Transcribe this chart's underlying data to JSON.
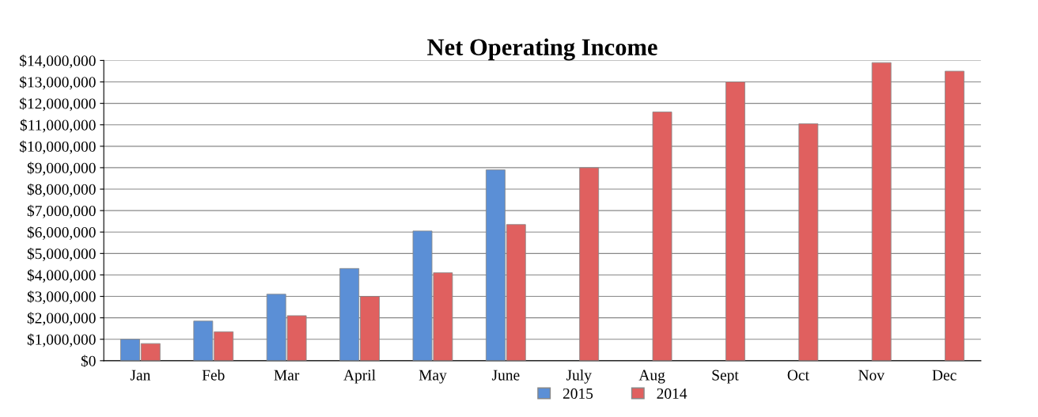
{
  "chart_data": {
    "type": "bar",
    "title": "Net Operating Income",
    "categories": [
      "Jan",
      "Feb",
      "Mar",
      "April",
      "May",
      "June",
      "July",
      "Aug",
      "Sept",
      "Oct",
      "Nov",
      "Dec"
    ],
    "series": [
      {
        "name": "2015",
        "color": "#5b8fd6",
        "values": [
          1000000,
          1850000,
          3100000,
          4300000,
          6050000,
          8900000,
          null,
          null,
          null,
          null,
          null,
          null
        ]
      },
      {
        "name": "2014",
        "color": "#e0605f",
        "values": [
          800000,
          1350000,
          2100000,
          3000000,
          4100000,
          6350000,
          9000000,
          11600000,
          13000000,
          11050000,
          13900000,
          13500000
        ]
      }
    ],
    "ylim": [
      0,
      14000000
    ],
    "yticks": [
      {
        "value": 0,
        "label": "$0"
      },
      {
        "value": 1000000,
        "label": "$1,000,000"
      },
      {
        "value": 2000000,
        "label": "$2,000,000"
      },
      {
        "value": 3000000,
        "label": "$3,000,000"
      },
      {
        "value": 4000000,
        "label": "$4,000,000"
      },
      {
        "value": 5000000,
        "label": "$5,000,000"
      },
      {
        "value": 6000000,
        "label": "$6,000,000"
      },
      {
        "value": 7000000,
        "label": "$7,000,000"
      },
      {
        "value": 8000000,
        "label": "$8,000,000"
      },
      {
        "value": 9000000,
        "label": "$9,000,000"
      },
      {
        "value": 10000000,
        "label": "$10,000,000"
      },
      {
        "value": 11000000,
        "label": "$11,000,000"
      },
      {
        "value": 12000000,
        "label": "$12,000,000"
      },
      {
        "value": 13000000,
        "label": "$13,000,000"
      },
      {
        "value": 14000000,
        "label": "$14,000,000"
      }
    ],
    "grid": "y",
    "legend": "bottom"
  }
}
